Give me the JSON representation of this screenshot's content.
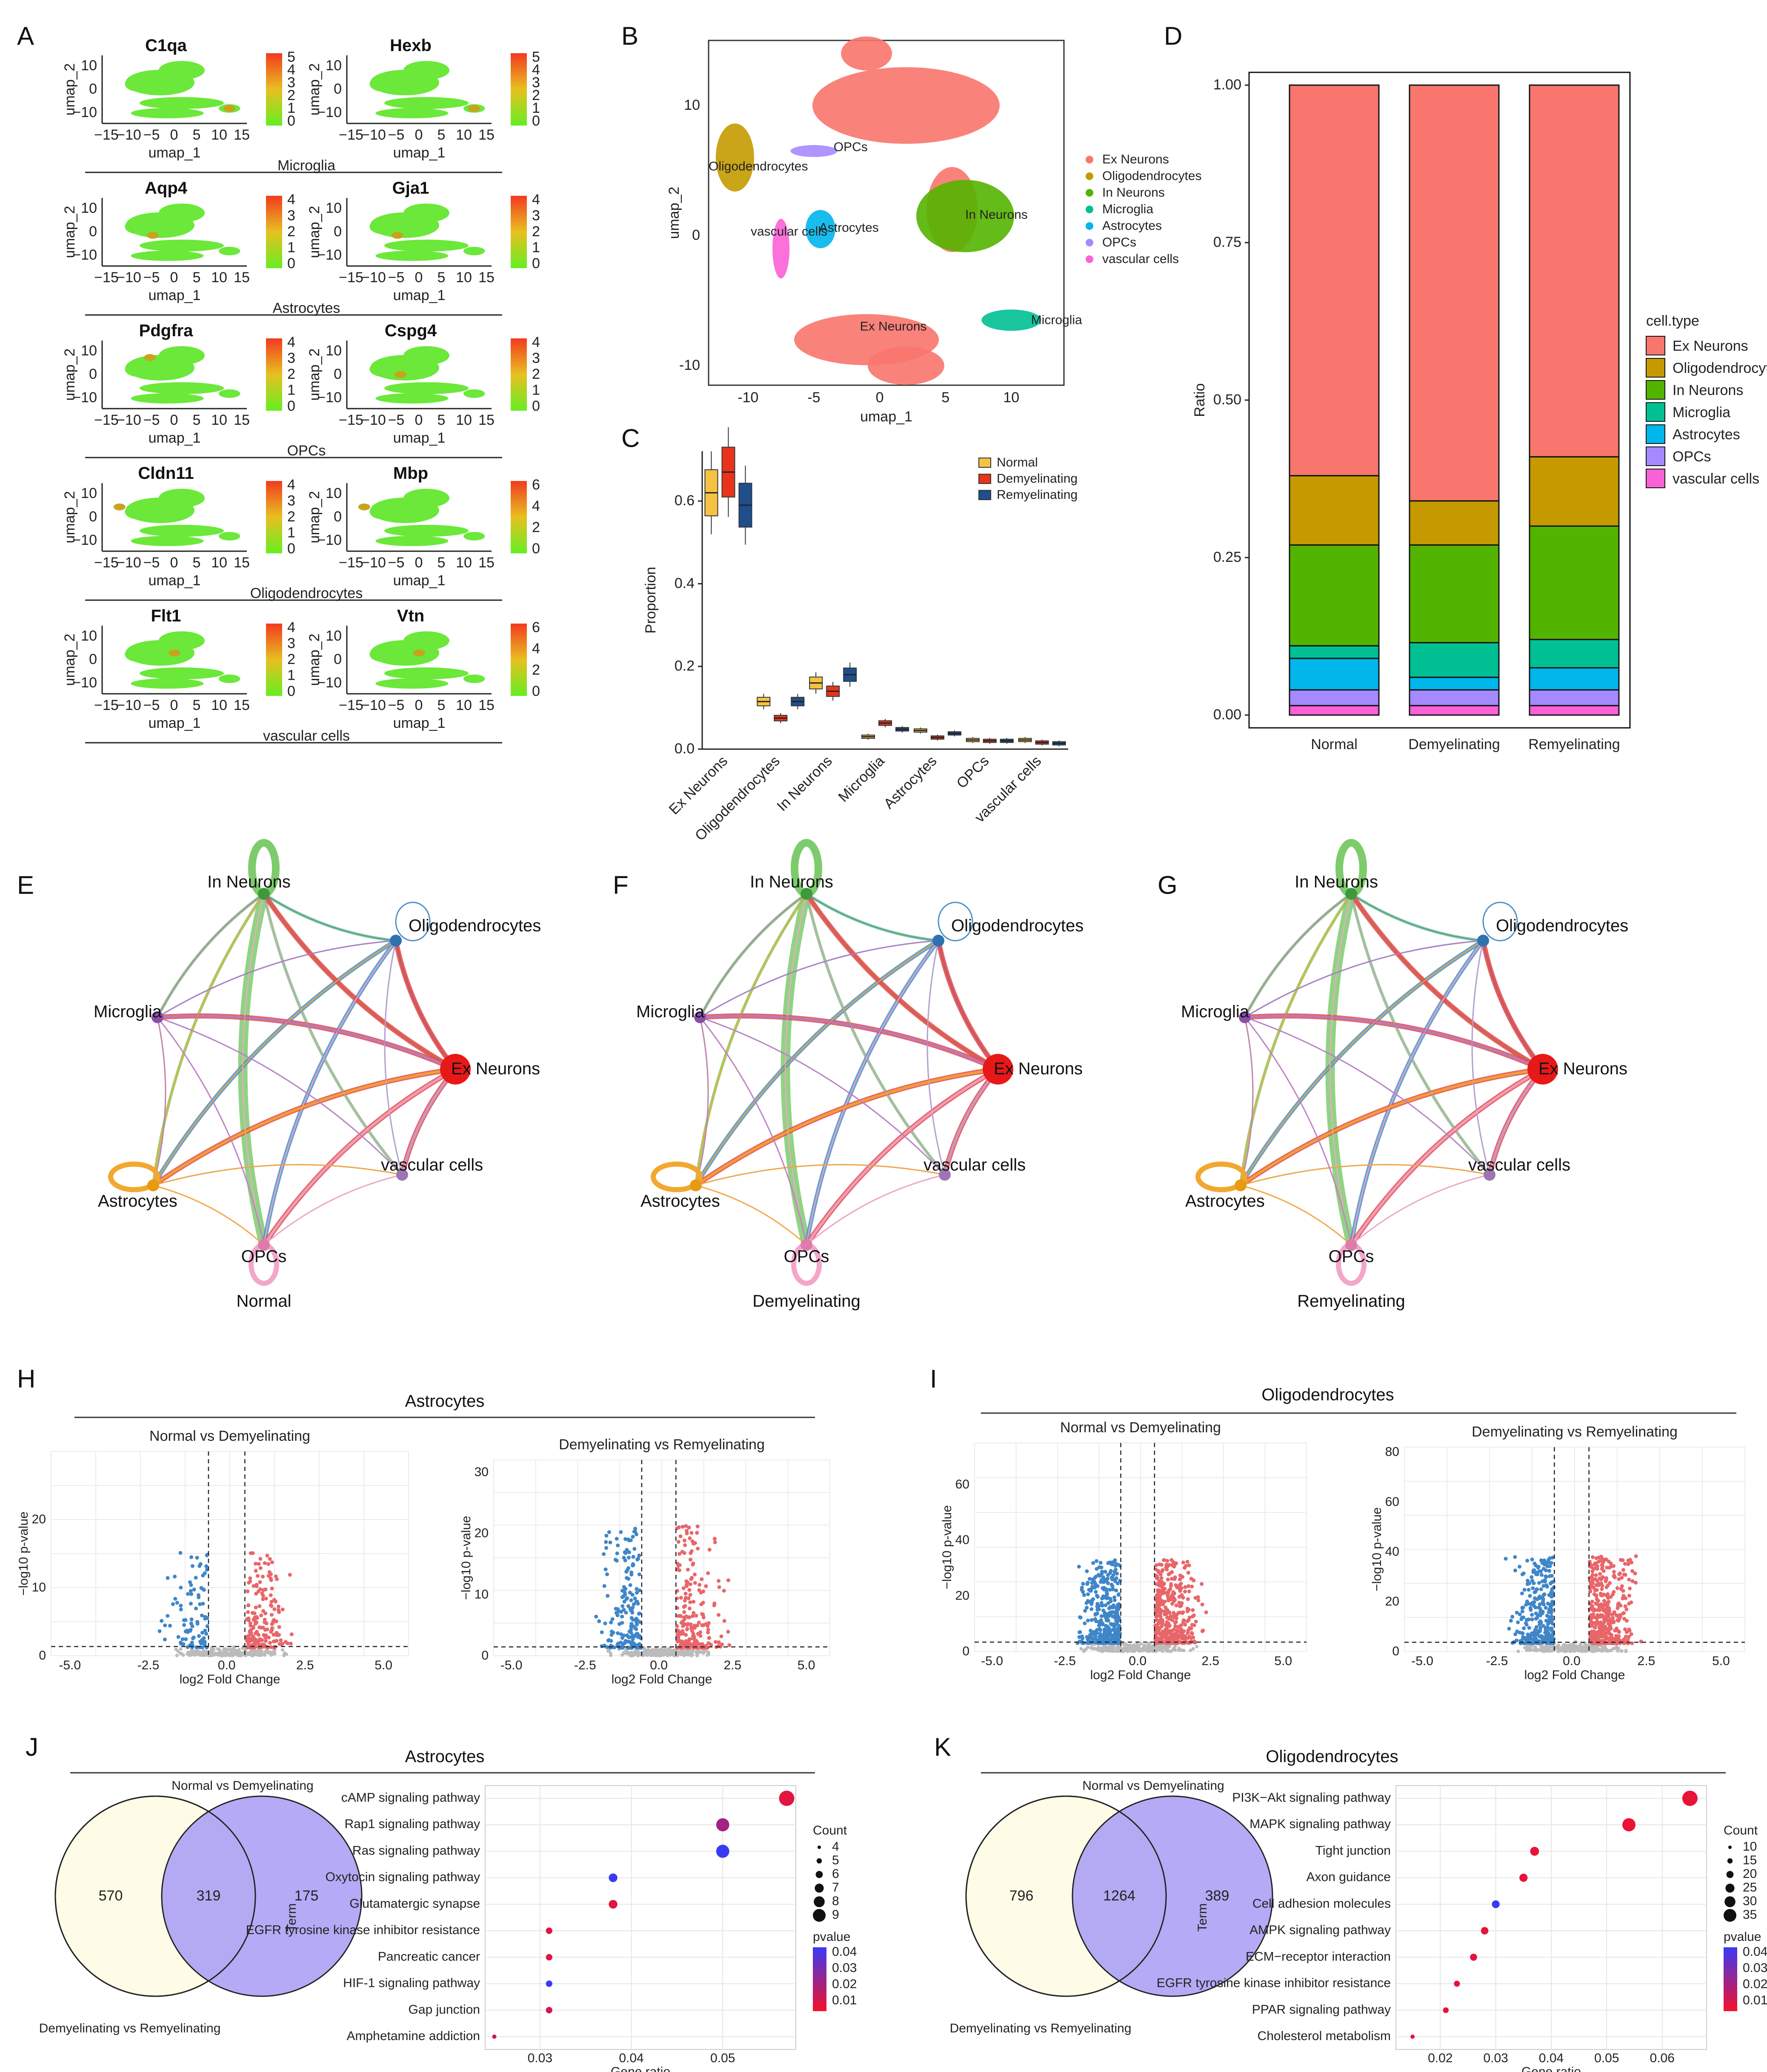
{
  "panels": [
    "A",
    "B",
    "C",
    "D",
    "E",
    "F",
    "G",
    "H",
    "I",
    "J",
    "K"
  ],
  "colors": {
    "Ex Neurons": "#F8766D",
    "Oligodendrocytes": "#C49A00",
    "In Neurons": "#53B400",
    "Microglia": "#00C094",
    "Astrocytes": "#00B6EB",
    "OPCs": "#A58AFF",
    "vascular cells": "#FB61D7",
    "Normal": "#F5C342",
    "Demyelinating": "#E8341C",
    "Remyelinating": "#1F4E8C",
    "down": "#3F86C9",
    "up": "#E8666A",
    "ns": "#BBBBBB",
    "vennLeft": "#FEFCE6",
    "vennRight": "#A79BF5",
    "vennOverlap": "#B9ABE2"
  },
  "panelA": {
    "axis": {
      "xlabel": "umap_1",
      "ylabel": "umap_2",
      "xticks": [
        "−15",
        "−10",
        "−5",
        "0",
        "5",
        "10",
        "15"
      ],
      "yticks": [
        "10",
        "0",
        "−10"
      ]
    },
    "rows": [
      {
        "group": "Microglia",
        "genes": [
          {
            "name": "C1qa",
            "scale": [
              "5",
              "4",
              "3",
              "2",
              "1",
              "0"
            ]
          },
          {
            "name": "Hexb",
            "scale": [
              "5",
              "4",
              "3",
              "2",
              "1",
              "0"
            ]
          }
        ]
      },
      {
        "group": "Astrocytes",
        "genes": [
          {
            "name": "Aqp4",
            "scale": [
              "4",
              "3",
              "2",
              "1",
              "0"
            ]
          },
          {
            "name": "Gja1",
            "scale": [
              "4",
              "3",
              "2",
              "1",
              "0"
            ]
          }
        ]
      },
      {
        "group": "OPCs",
        "genes": [
          {
            "name": "Pdgfra",
            "scale": [
              "4",
              "3",
              "2",
              "1",
              "0"
            ]
          },
          {
            "name": "Cspg4",
            "scale": [
              "4",
              "3",
              "2",
              "1",
              "0"
            ]
          }
        ]
      },
      {
        "group": "Oligodendrocytes",
        "genes": [
          {
            "name": "Cldn11",
            "scale": [
              "4",
              "3",
              "2",
              "1",
              "0"
            ]
          },
          {
            "name": "Mbp",
            "scale": [
              "6",
              "4",
              "2",
              "0"
            ]
          }
        ]
      },
      {
        "group": "vascular cells",
        "genes": [
          {
            "name": "Flt1",
            "scale": [
              "4",
              "3",
              "2",
              "1",
              "0"
            ]
          },
          {
            "name": "Vtn",
            "scale": [
              "6",
              "4",
              "2",
              "0"
            ]
          }
        ]
      }
    ]
  },
  "panelB": {
    "xlabel": "umap_1",
    "ylabel": "umap_2",
    "xticks": [
      "-10",
      "-5",
      "0",
      "5",
      "10"
    ],
    "yticks": [
      "10",
      "0",
      "-10"
    ],
    "legend": [
      "Ex Neurons",
      "Oligodendrocytes",
      "In Neurons",
      "Microglia",
      "Astrocytes",
      "OPCs",
      "vascular cells"
    ],
    "cluster_labels": [
      "OPCs",
      "Oligodendrocytes",
      "vascular cells",
      "Astrocytes",
      "In Neurons",
      "Ex Neurons",
      "Microglia"
    ]
  },
  "chart_data": [
    {
      "type": "box",
      "panel": "C",
      "ylabel": "Proportion",
      "ylim": [
        0,
        0.7
      ],
      "yticks": [
        "0.0",
        "0.2",
        "0.4",
        "0.6"
      ],
      "categories": [
        "Ex Neurons",
        "Oligodendrocytes",
        "In Neurons",
        "Microglia",
        "Astrocytes",
        "OPCs",
        "vascular cells"
      ],
      "legend": [
        "Normal",
        "Demyelinating",
        "Remyelinating"
      ],
      "series": [
        {
          "name": "Normal",
          "values": [
            0.62,
            0.115,
            0.16,
            0.03,
            0.045,
            0.022,
            0.022
          ]
        },
        {
          "name": "Demyelinating",
          "values": [
            0.67,
            0.075,
            0.14,
            0.063,
            0.028,
            0.02,
            0.016
          ]
        },
        {
          "name": "Remyelinating",
          "values": [
            0.59,
            0.115,
            0.18,
            0.048,
            0.038,
            0.02,
            0.014
          ]
        }
      ]
    },
    {
      "type": "bar",
      "stacked": true,
      "panel": "D",
      "ylabel": "Ratio",
      "ylim": [
        0,
        1
      ],
      "yticks": [
        "0.00",
        "0.25",
        "0.50",
        "0.75",
        "1.00"
      ],
      "categories": [
        "Normal",
        "Demyelinating",
        "Remyelinating"
      ],
      "legend_title": "cell.type",
      "legend": [
        "Ex Neurons",
        "Oligodendrocytes",
        "In Neurons",
        "Microglia",
        "Astrocytes",
        "OPCs",
        "vascular cells"
      ],
      "series": [
        {
          "name": "vascular cells",
          "values": [
            0.015,
            0.015,
            0.015
          ]
        },
        {
          "name": "OPCs",
          "values": [
            0.025,
            0.025,
            0.025
          ]
        },
        {
          "name": "Astrocytes",
          "values": [
            0.05,
            0.02,
            0.035
          ]
        },
        {
          "name": "Microglia",
          "values": [
            0.02,
            0.055,
            0.045
          ]
        },
        {
          "name": "In Neurons",
          "values": [
            0.16,
            0.155,
            0.18
          ]
        },
        {
          "name": "Oligodendrocytes",
          "values": [
            0.11,
            0.07,
            0.11
          ]
        },
        {
          "name": "Ex Neurons",
          "values": [
            0.62,
            0.66,
            0.59
          ]
        }
      ]
    },
    {
      "type": "network",
      "panels": [
        "E",
        "F",
        "G"
      ],
      "conditions": [
        "Normal",
        "Demyelinating",
        "Remyelinating"
      ],
      "nodes": [
        "In Neurons",
        "Oligodendrocytes",
        "Ex Neurons",
        "vascular cells",
        "OPCs",
        "Astrocytes",
        "Microglia"
      ]
    },
    {
      "type": "scatter",
      "subtype": "volcano",
      "panel": "H",
      "title": "Astrocytes",
      "subplots": [
        {
          "title": "Normal vs Demyelinating",
          "xlabel": "log2 Fold Change",
          "ylabel": "−log10 p-value",
          "xticks": [
            "-5.0",
            "-2.5",
            "0.0",
            "2.5",
            "5.0"
          ],
          "yticks": [
            "0",
            "10",
            "20"
          ],
          "ylim": [
            0,
            30
          ]
        },
        {
          "title": "Demyelinating vs Remyelinating",
          "xlabel": "log2 Fold Change",
          "ylabel": "−log10 p-value",
          "xticks": [
            "-5.0",
            "-2.5",
            "0.0",
            "2.5",
            "5.0"
          ],
          "yticks": [
            "0",
            "10",
            "20",
            "30"
          ],
          "ylim": [
            0,
            32
          ]
        }
      ]
    },
    {
      "type": "scatter",
      "subtype": "volcano",
      "panel": "I",
      "title": "Oligodendrocytes",
      "subplots": [
        {
          "title": "Normal vs Demyelinating",
          "xlabel": "log2 Fold Change",
          "ylabel": "−log10 p-value",
          "xticks": [
            "-5.0",
            "-2.5",
            "0.0",
            "2.5",
            "5.0"
          ],
          "yticks": [
            "0",
            "20",
            "40",
            "60"
          ],
          "ylim": [
            0,
            75
          ]
        },
        {
          "title": "Demyelinating vs Remyelinating",
          "xlabel": "log2 Fold Change",
          "ylabel": "−log10 p-value",
          "xticks": [
            "-5.0",
            "-2.5",
            "0.0",
            "2.5",
            "5.0"
          ],
          "yticks": [
            "0",
            "20",
            "40",
            "60",
            "80"
          ],
          "ylim": [
            0,
            82
          ]
        }
      ]
    },
    {
      "type": "venn",
      "panel": "J",
      "title": "Astrocytes",
      "sets": [
        "Normal vs Demyelinating",
        "Demyelinating vs Remyelinating"
      ],
      "values": {
        "left": "570",
        "overlap": "319",
        "right": "175"
      }
    },
    {
      "type": "scatter",
      "subtype": "dotplot",
      "panel": "J",
      "xlabel": "Gene ratio",
      "ylabel": "Term",
      "xticks": [
        "0.03",
        "0.04",
        "0.05"
      ],
      "xlim": [
        0.024,
        0.058
      ],
      "terms": [
        "cAMP signaling pathway",
        "Rap1 signaling pathway",
        "Ras signaling pathway",
        "Oxytocin signaling pathway",
        "Glutamatergic synapse",
        "EGFR tyrosine kinase inhibitor resistance",
        "Pancreatic cancer",
        "HIF-1 signaling pathway",
        "Gap junction",
        "Amphetamine addiction"
      ],
      "gene_ratio": [
        0.057,
        0.05,
        0.05,
        0.038,
        0.038,
        0.031,
        0.031,
        0.031,
        0.031,
        0.025
      ],
      "count": [
        9,
        8,
        8,
        6,
        6,
        5,
        5,
        5,
        5,
        4
      ],
      "pvalue": [
        0.005,
        0.02,
        0.045,
        0.045,
        0.005,
        0.005,
        0.005,
        0.045,
        0.008,
        0.01
      ],
      "count_legend": {
        "title": "Count",
        "labels": [
          "4",
          "5",
          "6",
          "7",
          "8",
          "9"
        ]
      },
      "pvalue_legend": {
        "title": "pvalue",
        "labels": [
          "0.04",
          "0.03",
          "0.02",
          "0.01"
        ]
      }
    },
    {
      "type": "venn",
      "panel": "K",
      "title": "Oligodendrocytes",
      "sets": [
        "Normal vs Demyelinating",
        "Demyelinating vs Remyelinating"
      ],
      "values": {
        "left": "796",
        "overlap": "1264",
        "right": "389"
      }
    },
    {
      "type": "scatter",
      "subtype": "dotplot",
      "panel": "K",
      "xlabel": "Gene ratio",
      "ylabel": "Term",
      "xticks": [
        "0.02",
        "0.03",
        "0.04",
        "0.05",
        "0.06"
      ],
      "xlim": [
        0.012,
        0.068
      ],
      "terms": [
        "PI3K−Akt signaling pathway",
        "MAPK signaling pathway",
        "Tight junction",
        "Axon guidance",
        "Cell adhesion molecules",
        "AMPK signaling pathway",
        "ECM−receptor interaction",
        "EGFR tyrosine kinase inhibitor resistance",
        "PPAR signaling pathway",
        "Cholesterol metabolism"
      ],
      "gene_ratio": [
        0.065,
        0.054,
        0.037,
        0.035,
        0.03,
        0.028,
        0.026,
        0.023,
        0.021,
        0.015
      ],
      "count": [
        38,
        32,
        20,
        18,
        17,
        16,
        15,
        12,
        11,
        7
      ],
      "pvalue": [
        0.003,
        0.003,
        0.003,
        0.003,
        0.045,
        0.004,
        0.004,
        0.004,
        0.004,
        0.004
      ],
      "count_legend": {
        "title": "Count",
        "labels": [
          "10",
          "15",
          "20",
          "25",
          "30",
          "35"
        ]
      },
      "pvalue_legend": {
        "title": "pvalue",
        "labels": [
          "0.04",
          "0.03",
          "0.02",
          "0.01"
        ]
      }
    }
  ]
}
